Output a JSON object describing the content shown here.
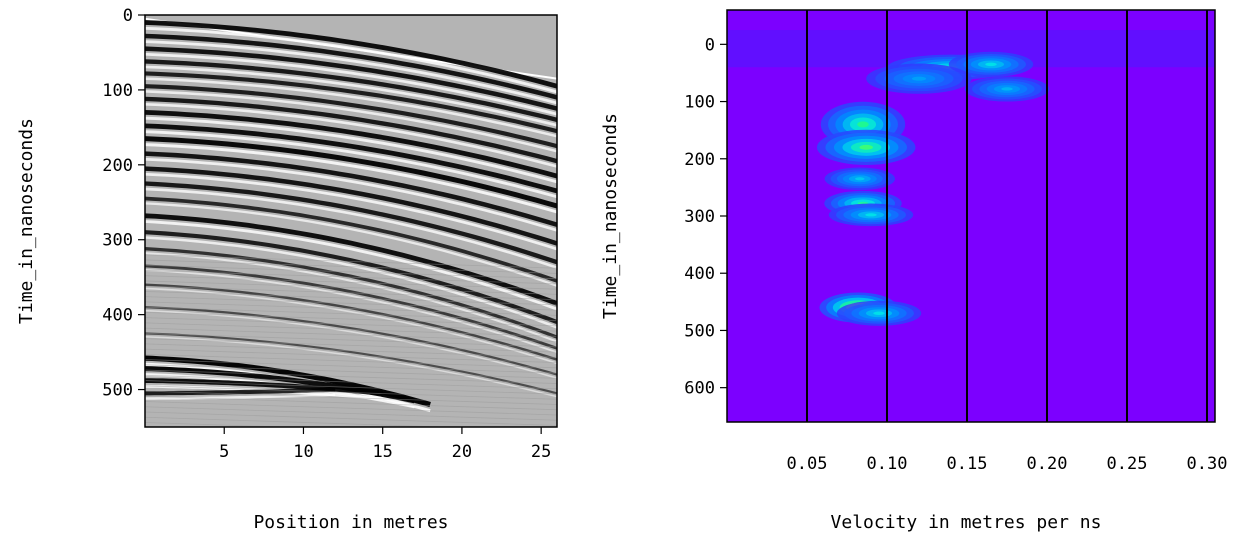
{
  "chart_data": [
    {
      "type": "heatmap",
      "subtype": "seismic-wiggle-gather",
      "xlabel": "Position in metres",
      "ylabel": "Time_in_nanoseconds",
      "xlim": [
        0,
        26
      ],
      "ylim": [
        0,
        550
      ],
      "y_inverted": true,
      "xticks": [
        "5",
        "10",
        "15",
        "20",
        "25"
      ],
      "xtick_values": [
        5,
        10,
        15,
        20,
        25
      ],
      "yticks": [
        "0",
        "100",
        "200",
        "300",
        "400",
        "500"
      ],
      "ytick_values": [
        0,
        100,
        200,
        300,
        400,
        500
      ],
      "colormap": "grayscale",
      "colors": {
        "background": "#b4b4b4",
        "positive": "#ffffff",
        "negative": "#000000"
      },
      "first_arrival": {
        "x": [
          0,
          26
        ],
        "y": [
          5,
          85
        ]
      },
      "reflections": [
        {
          "t0": 10,
          "x_end": 26,
          "t_end": 95,
          "strength": 0.85
        },
        {
          "t0": 28,
          "x_end": 26,
          "t_end": 110,
          "strength": 0.8
        },
        {
          "t0": 45,
          "x_end": 26,
          "t_end": 125,
          "strength": 0.8
        },
        {
          "t0": 62,
          "x_end": 26,
          "t_end": 140,
          "strength": 0.75
        },
        {
          "t0": 78,
          "x_end": 26,
          "t_end": 155,
          "strength": 0.7
        },
        {
          "t0": 95,
          "x_end": 26,
          "t_end": 175,
          "strength": 0.7
        },
        {
          "t0": 112,
          "x_end": 26,
          "t_end": 195,
          "strength": 0.75
        },
        {
          "t0": 130,
          "x_end": 26,
          "t_end": 215,
          "strength": 0.85
        },
        {
          "t0": 148,
          "x_end": 26,
          "t_end": 235,
          "strength": 0.85
        },
        {
          "t0": 165,
          "x_end": 26,
          "t_end": 255,
          "strength": 0.9
        },
        {
          "t0": 185,
          "x_end": 26,
          "t_end": 280,
          "strength": 0.8
        },
        {
          "t0": 205,
          "x_end": 26,
          "t_end": 305,
          "strength": 0.8
        },
        {
          "t0": 225,
          "x_end": 26,
          "t_end": 330,
          "strength": 0.75
        },
        {
          "t0": 245,
          "x_end": 26,
          "t_end": 355,
          "strength": 0.6
        },
        {
          "t0": 268,
          "x_end": 26,
          "t_end": 385,
          "strength": 0.85
        },
        {
          "t0": 290,
          "x_end": 26,
          "t_end": 410,
          "strength": 0.7
        },
        {
          "t0": 312,
          "x_end": 26,
          "t_end": 430,
          "strength": 0.5
        },
        {
          "t0": 335,
          "x_end": 26,
          "t_end": 445,
          "strength": 0.4
        },
        {
          "t0": 360,
          "x_end": 26,
          "t_end": 460,
          "strength": 0.3
        },
        {
          "t0": 390,
          "x_end": 26,
          "t_end": 480,
          "strength": 0.25
        },
        {
          "t0": 425,
          "x_end": 26,
          "t_end": 505,
          "strength": 0.22
        },
        {
          "t0": 458,
          "x_end": 18,
          "t_end": 520,
          "strength": 0.95
        },
        {
          "t0": 472,
          "x_end": 17,
          "t_end": 515,
          "strength": 0.9
        },
        {
          "t0": 488,
          "x_end": 15,
          "t_end": 505,
          "strength": 0.85
        },
        {
          "t0": 505,
          "x_end": 12,
          "t_end": 500,
          "strength": 0.7
        }
      ],
      "grid": false,
      "legend": "none"
    },
    {
      "type": "heatmap",
      "subtype": "velocity-semblance",
      "xlabel": "Velocity in metres per ns",
      "ylabel": "Time_in_nanoseconds",
      "xlim": [
        0,
        0.305
      ],
      "ylim": [
        -60,
        660
      ],
      "y_inverted": true,
      "xticks": [
        "0.05",
        "0.10",
        "0.15",
        "0.20",
        "0.25",
        "0.30"
      ],
      "xtick_values": [
        0.05,
        0.1,
        0.15,
        0.2,
        0.25,
        0.3
      ],
      "yticks": [
        "0",
        "100",
        "200",
        "300",
        "400",
        "500",
        "600"
      ],
      "ytick_values": [
        0,
        100,
        200,
        300,
        400,
        500,
        600
      ],
      "vertical_lines_at": [
        0.05,
        0.1,
        0.15,
        0.2,
        0.25,
        0.3
      ],
      "colormap": "violet-blue-cyan-green-yellow-red",
      "colors": {
        "background": "#7c00ff",
        "band": "#4a1cff",
        "line": "#000000"
      },
      "peaks": [
        {
          "v": 0.14,
          "t": 40,
          "sv": 0.018,
          "st": 10,
          "amp": 0.62
        },
        {
          "v": 0.165,
          "t": 35,
          "sv": 0.012,
          "st": 10,
          "amp": 0.55
        },
        {
          "v": 0.175,
          "t": 78,
          "sv": 0.012,
          "st": 10,
          "amp": 0.45
        },
        {
          "v": 0.12,
          "t": 60,
          "sv": 0.015,
          "st": 12,
          "amp": 0.4
        },
        {
          "v": 0.085,
          "t": 140,
          "sv": 0.012,
          "st": 18,
          "amp": 0.7
        },
        {
          "v": 0.087,
          "t": 180,
          "sv": 0.014,
          "st": 14,
          "amp": 0.74
        },
        {
          "v": 0.083,
          "t": 235,
          "sv": 0.01,
          "st": 9,
          "amp": 0.5
        },
        {
          "v": 0.085,
          "t": 278,
          "sv": 0.011,
          "st": 10,
          "amp": 0.68
        },
        {
          "v": 0.09,
          "t": 298,
          "sv": 0.012,
          "st": 9,
          "amp": 0.55
        },
        {
          "v": 0.082,
          "t": 460,
          "sv": 0.011,
          "st": 12,
          "amp": 1.0
        },
        {
          "v": 0.095,
          "t": 470,
          "sv": 0.012,
          "st": 10,
          "amp": 0.55
        }
      ],
      "grid": false,
      "legend": "none"
    }
  ]
}
